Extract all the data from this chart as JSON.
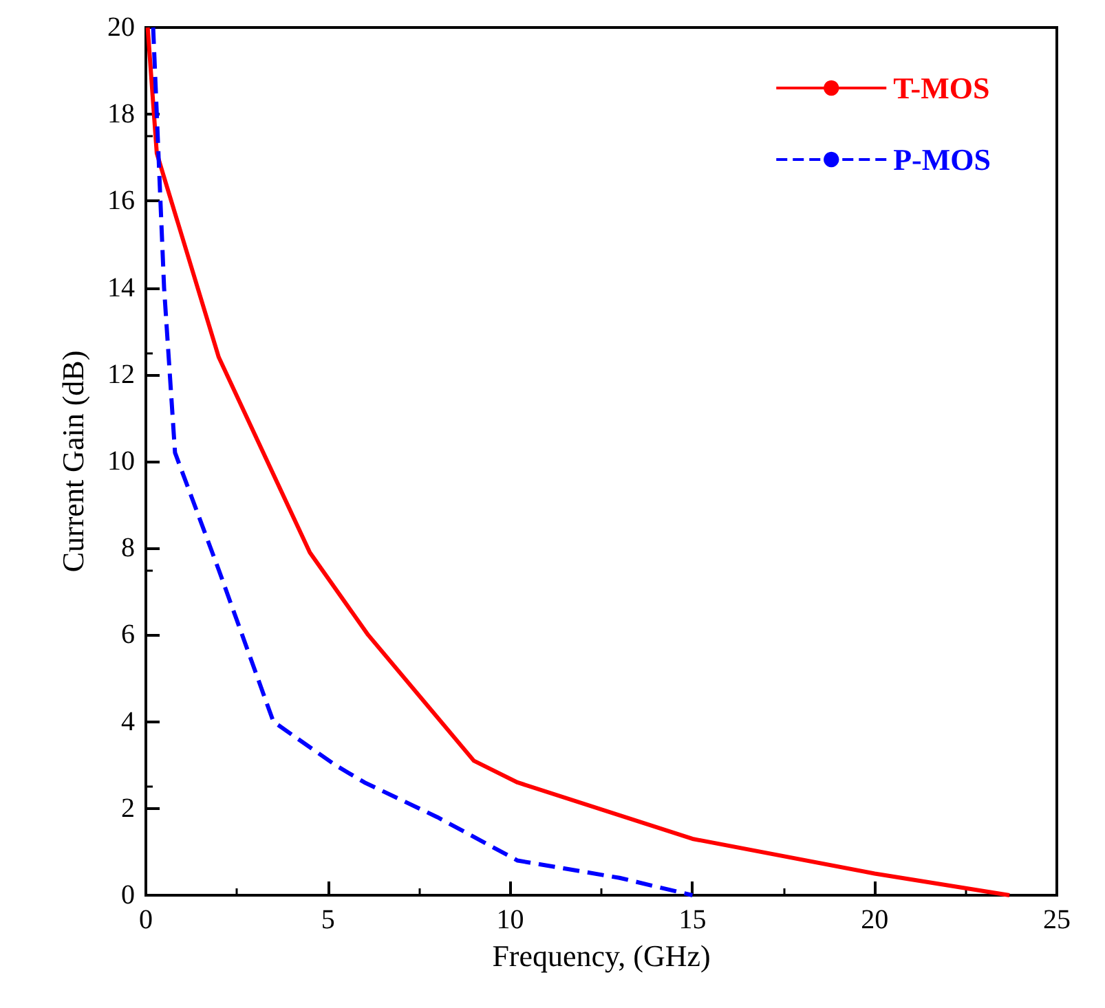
{
  "chart_data": {
    "type": "line",
    "xlabel": "Frequency, (GHz)",
    "ylabel": "Current Gain (dB)",
    "xlim": [
      0,
      25
    ],
    "xticks": [
      0,
      5,
      10,
      15,
      20,
      25
    ],
    "ylim": [
      0,
      20
    ],
    "yticks": [
      0,
      2,
      4,
      6,
      8,
      10,
      12,
      14,
      16,
      18,
      20
    ],
    "grid": false,
    "legend": "top right",
    "marker": "none",
    "series": [
      {
        "name": "T-MOS",
        "color": "#ff0000",
        "line_style": "solid",
        "x": [
          0.05,
          0.3,
          2,
          4.5,
          6.1,
          9,
          10.2,
          15,
          20,
          23.7
        ],
        "values": [
          20,
          17.1,
          12.4,
          7.9,
          6,
          3.1,
          2.6,
          1.3,
          0.5,
          0
        ]
      },
      {
        "name": "P-MOS",
        "color": "#0000ff",
        "line_style": "dashed",
        "x": [
          0.2,
          0.35,
          0.5,
          0.8,
          2,
          3.5,
          5.2,
          6,
          8,
          10.2,
          13,
          15
        ],
        "values": [
          20,
          17,
          14,
          10.2,
          7.5,
          4,
          3,
          2.6,
          1.8,
          0.8,
          0.4,
          0
        ]
      }
    ]
  }
}
